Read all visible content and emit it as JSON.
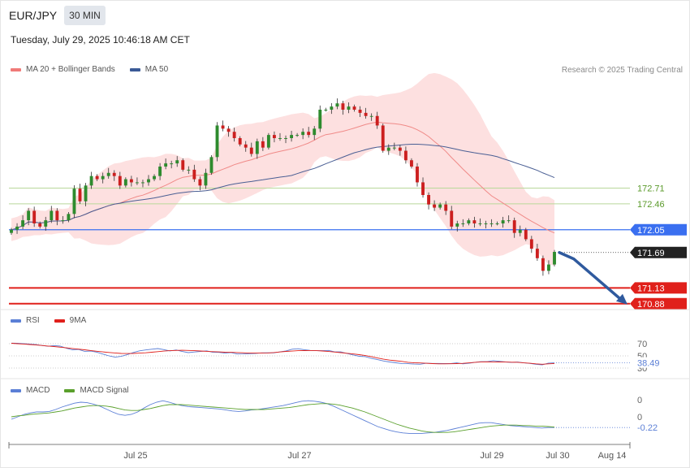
{
  "header": {
    "symbol": "EUR/JPY",
    "timeframe": "30 MIN",
    "datetime": "Tuesday, July 29, 2025 10:46:18 AM CET",
    "credit": "Research © 2025 Trading Central"
  },
  "legends": {
    "main": [
      {
        "label": "MA 20 + Bollinger Bands",
        "color": "#f07a78"
      },
      {
        "label": "MA 50",
        "color": "#3a5a96"
      }
    ],
    "rsi": [
      {
        "label": "RSI",
        "color": "#5b7fd6"
      },
      {
        "label": "9MA",
        "color": "#e0201b"
      }
    ],
    "macd": [
      {
        "label": "MACD",
        "color": "#5b7fd6"
      },
      {
        "label": "MACD Signal",
        "color": "#5aa02c"
      }
    ]
  },
  "colors": {
    "up": "#2e8b2e",
    "down": "#cc1f1f",
    "band_fill": "#fde0e0",
    "ma20": "#f08a88",
    "ma50": "#4a5f94",
    "resistance_line": "#b8d89a",
    "resistance_text": "#5a9a2a",
    "pivot": "#3a6ff0",
    "support": "#e0201b",
    "last_price_tag": "#222222",
    "arrow": "#2f5a9e"
  },
  "chart_data": [
    {
      "type": "candlestick",
      "title": "EUR/JPY",
      "x_labels": [
        "Jul 25",
        "Jul 27",
        "Jul 29",
        "Jul 30",
        "Aug 14"
      ],
      "y_range": [
        170.8,
        174.4
      ],
      "close_path": [
        172.05,
        172.1,
        172.2,
        172.35,
        172.15,
        172.1,
        172.2,
        172.35,
        172.2,
        172.2,
        172.3,
        172.7,
        172.5,
        172.75,
        172.9,
        172.85,
        172.9,
        172.95,
        172.9,
        172.75,
        172.85,
        172.8,
        172.8,
        172.8,
        172.85,
        172.9,
        173.05,
        173.1,
        173.1,
        173.15,
        173.0,
        173.0,
        172.85,
        172.75,
        172.95,
        173.2,
        173.7,
        173.65,
        173.6,
        173.5,
        173.4,
        173.35,
        173.25,
        173.45,
        173.35,
        173.55,
        173.5,
        173.5,
        173.5,
        173.55,
        173.55,
        173.6,
        173.55,
        173.65,
        173.95,
        173.95,
        174.0,
        174.05,
        173.95,
        174.0,
        173.95,
        173.9,
        173.85,
        173.85,
        173.7,
        173.3,
        173.35,
        173.35,
        173.3,
        173.15,
        173.05,
        172.8,
        172.6,
        172.45,
        172.4,
        172.45,
        172.35,
        172.1,
        172.15,
        172.15,
        172.2,
        172.15,
        172.15,
        172.15,
        172.15,
        172.15,
        172.2,
        172.2,
        172.0,
        172.05,
        171.9,
        171.75,
        171.6,
        171.4,
        171.5,
        171.7
      ],
      "levels": [
        {
          "label": "172.71",
          "value": 172.71,
          "kind": "resistance"
        },
        {
          "label": "172.46",
          "value": 172.46,
          "kind": "resistance"
        },
        {
          "label": "172.05",
          "value": 172.05,
          "kind": "pivot"
        },
        {
          "label": "171.69",
          "value": 171.69,
          "kind": "last"
        },
        {
          "label": "171.13",
          "value": 171.13,
          "kind": "support"
        },
        {
          "label": "170.88",
          "value": 170.88,
          "kind": "support"
        }
      ],
      "forecast_arrow": {
        "from": 171.69,
        "to": 170.88
      }
    },
    {
      "type": "line",
      "title": "RSI",
      "y_labels": [
        "70",
        "50",
        "30"
      ],
      "last_value_label": "38.49",
      "series": [
        {
          "name": "RSI",
          "values": [
            71.0,
            70.8,
            70.2,
            69.4,
            68.6,
            67.1,
            65.7,
            67.0,
            66.0,
            62.6,
            60.0,
            60.6,
            57.4,
            57.8,
            56.2,
            52.9,
            50.0,
            47.9,
            49.2,
            52.2,
            55.6,
            58.3,
            59.7,
            61.0,
            62.0,
            60.3,
            58.2,
            59.7,
            57.2,
            55.3,
            56.4,
            57.3,
            58.3,
            56.0,
            55.7,
            54.5,
            55.4,
            53.1,
            53.2,
            53.6,
            54.0,
            55.0,
            55.1,
            54.9,
            56.5,
            58.1,
            61.0,
            61.7,
            60.1,
            58.9,
            58.6,
            58.5,
            58.9,
            56.6,
            56.6,
            53.9,
            51.6,
            49.3,
            48.8,
            45.9,
            43.8,
            41.6,
            40.0,
            38.7,
            37.4,
            37.2,
            36.6,
            36.3,
            37.9,
            37.6,
            37.6,
            37.3,
            37.3,
            38.5,
            36.9,
            37.8,
            39.5,
            40.6,
            40.5,
            42.1,
            41.1,
            40.0,
            39.3,
            39.8,
            38.5,
            37.6,
            36.1,
            35.3,
            38.2,
            38.49
          ]
        },
        {
          "name": "9MA",
          "values": [
            70.7,
            70.0,
            69.4,
            68.7,
            67.9,
            67.1,
            66.1,
            65.3,
            64.3,
            63.2,
            62.2,
            61.1,
            60.0,
            58.8,
            57.6,
            56.5,
            55.6,
            54.8,
            54.0,
            53.9,
            54.0,
            54.5,
            55.1,
            56.0,
            57.0,
            57.8,
            58.5,
            58.9,
            59.2,
            58.9,
            58.5,
            58.0,
            57.5,
            57.0,
            56.5,
            56.0,
            55.9,
            55.5,
            55.1,
            54.6,
            54.5,
            54.6,
            54.8,
            55.4,
            56.4,
            57.3,
            57.9,
            58.5,
            58.7,
            58.8,
            58.5,
            58.0,
            57.2,
            56.3,
            55.3,
            54.3,
            53.2,
            52.0,
            50.6,
            48.8,
            46.6,
            44.6,
            43.1,
            42.0,
            40.9,
            39.5,
            38.7,
            38.4,
            37.9,
            37.3,
            36.9,
            36.9,
            37.1,
            37.3,
            37.7,
            38.5,
            39.4,
            40.1,
            40.3,
            40.2,
            40.0,
            39.8,
            39.6,
            39.4,
            38.6,
            37.9,
            37.0,
            36.3,
            37.0,
            37.5
          ]
        }
      ]
    },
    {
      "type": "line",
      "title": "MACD",
      "y_labels": [
        "0",
        "0"
      ],
      "last_value_label": "-0.22",
      "series": [
        {
          "name": "MACD",
          "values": [
            -0.05,
            0.0,
            0.05,
            0.08,
            0.1,
            0.1,
            0.11,
            0.15,
            0.2,
            0.24,
            0.28,
            0.3,
            0.29,
            0.26,
            0.22,
            0.16,
            0.1,
            0.05,
            0.03,
            0.05,
            0.1,
            0.18,
            0.25,
            0.3,
            0.33,
            0.3,
            0.26,
            0.23,
            0.21,
            0.2,
            0.19,
            0.18,
            0.17,
            0.16,
            0.14,
            0.12,
            0.11,
            0.12,
            0.14,
            0.15,
            0.17,
            0.19,
            0.21,
            0.23,
            0.26,
            0.29,
            0.32,
            0.33,
            0.32,
            0.3,
            0.27,
            0.22,
            0.16,
            0.1,
            0.04,
            -0.02,
            -0.08,
            -0.14,
            -0.2,
            -0.24,
            -0.28,
            -0.31,
            -0.33,
            -0.34,
            -0.34,
            -0.34,
            -0.33,
            -0.32,
            -0.3,
            -0.28,
            -0.25,
            -0.22,
            -0.19,
            -0.16,
            -0.13,
            -0.12,
            -0.12,
            -0.14,
            -0.16,
            -0.18,
            -0.19,
            -0.2,
            -0.21,
            -0.22,
            -0.23,
            -0.22,
            -0.22
          ]
        },
        {
          "name": "MACD Signal",
          "values": [
            0.0,
            0.02,
            0.03,
            0.05,
            0.06,
            0.07,
            0.08,
            0.1,
            0.12,
            0.15,
            0.18,
            0.2,
            0.22,
            0.23,
            0.23,
            0.22,
            0.2,
            0.17,
            0.14,
            0.13,
            0.13,
            0.15,
            0.17,
            0.2,
            0.23,
            0.25,
            0.25,
            0.25,
            0.24,
            0.23,
            0.22,
            0.21,
            0.2,
            0.19,
            0.18,
            0.17,
            0.16,
            0.15,
            0.15,
            0.15,
            0.15,
            0.16,
            0.17,
            0.18,
            0.19,
            0.21,
            0.23,
            0.25,
            0.26,
            0.27,
            0.27,
            0.26,
            0.24,
            0.21,
            0.18,
            0.14,
            0.1,
            0.05,
            0.0,
            -0.05,
            -0.1,
            -0.15,
            -0.19,
            -0.23,
            -0.26,
            -0.29,
            -0.31,
            -0.32,
            -0.32,
            -0.32,
            -0.31,
            -0.29,
            -0.27,
            -0.25,
            -0.23,
            -0.21,
            -0.19,
            -0.18,
            -0.17,
            -0.17,
            -0.17,
            -0.18,
            -0.18,
            -0.19,
            -0.19,
            -0.2,
            -0.21
          ]
        }
      ]
    }
  ]
}
